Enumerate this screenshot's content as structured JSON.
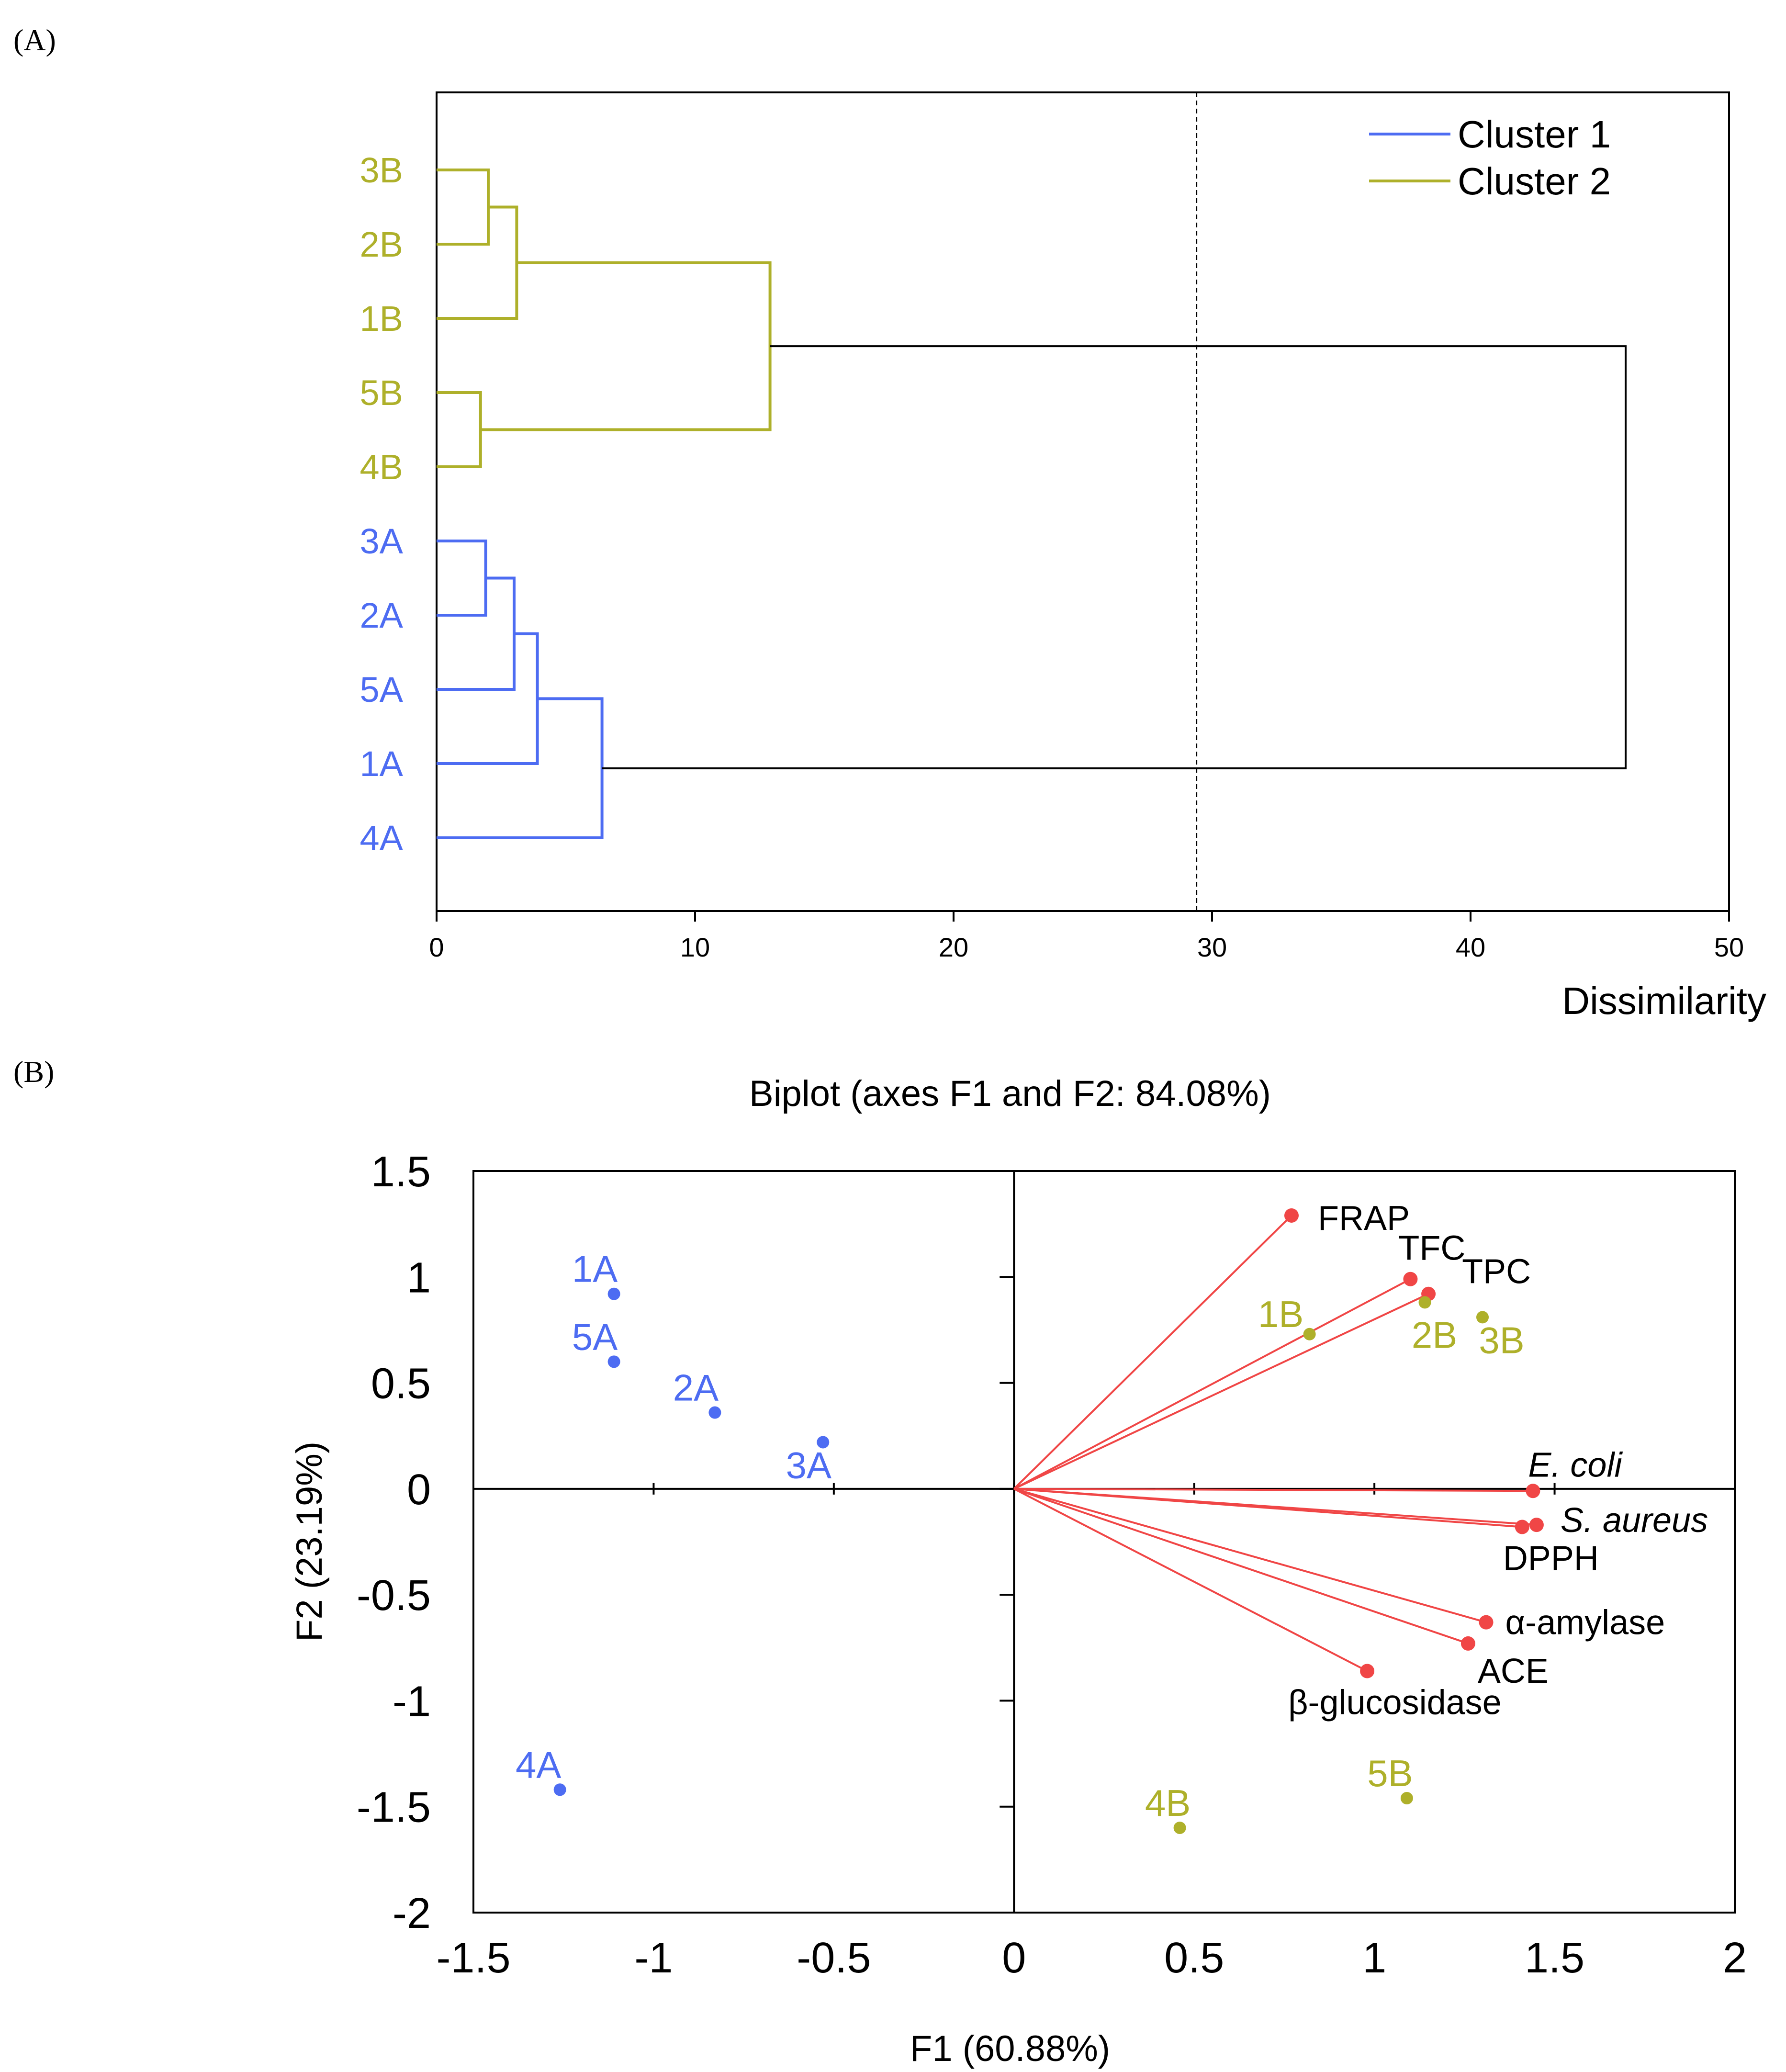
{
  "panel_labels": {
    "a": "(A)",
    "b": "(B)"
  },
  "colors": {
    "cluster1": "#4d6cf2",
    "cluster2": "#aeb02a",
    "vectors": "#f04646",
    "axis": "#000000"
  },
  "chart_data": [
    {
      "type": "dendrogram",
      "xlabel": "Dissimilarity",
      "xlim": [
        0,
        50
      ],
      "xticks": [
        "0",
        "10",
        "20",
        "30",
        "40",
        "50"
      ],
      "truncation_line": 29.4,
      "legend": {
        "position": "top-right",
        "entries": [
          {
            "name": "Cluster 1",
            "color": "#4d6cf2"
          },
          {
            "name": "Cluster 2",
            "color": "#aeb02a"
          }
        ]
      },
      "leaves": [
        {
          "label": "3B",
          "cluster": 2
        },
        {
          "label": "2B",
          "cluster": 2
        },
        {
          "label": "1B",
          "cluster": 2
        },
        {
          "label": "5B",
          "cluster": 2
        },
        {
          "label": "4B",
          "cluster": 2
        },
        {
          "label": "3A",
          "cluster": 1
        },
        {
          "label": "2A",
          "cluster": 1
        },
        {
          "label": "5A",
          "cluster": 1
        },
        {
          "label": "1A",
          "cluster": 1
        },
        {
          "label": "4A",
          "cluster": 1
        }
      ],
      "merges": [
        {
          "a": "3B",
          "b": "2B",
          "height": 2.0,
          "cluster": 2
        },
        {
          "a": "3B+2B",
          "b": "1B",
          "height": 3.1,
          "cluster": 2
        },
        {
          "a": "5B",
          "b": "4B",
          "height": 1.7,
          "cluster": 2
        },
        {
          "a": "3B+2B+1B",
          "b": "5B+4B",
          "height": 12.9,
          "cluster": 2
        },
        {
          "a": "3A",
          "b": "2A",
          "height": 1.9,
          "cluster": 1
        },
        {
          "a": "3A+2A",
          "b": "5A",
          "height": 3.0,
          "cluster": 1
        },
        {
          "a": "3A+2A+5A",
          "b": "1A",
          "height": 3.9,
          "cluster": 1
        },
        {
          "a": "3A+2A+5A+1A",
          "b": "4A",
          "height": 6.4,
          "cluster": 1
        },
        {
          "a": "cluster2",
          "b": "cluster1",
          "height": 46.0,
          "cluster": 0
        }
      ]
    },
    {
      "type": "scatter",
      "title": "Biplot (axes F1 and F2: 84.08%)",
      "xlabel": "F1 (60.88%)",
      "ylabel": "F2 (23.19%)",
      "xlim": [
        -1.5,
        2
      ],
      "ylim": [
        -2,
        1.5
      ],
      "xticks": [
        "-1.5",
        "-1",
        "-0.5",
        "0",
        "0.5",
        "1",
        "1.5",
        "2"
      ],
      "yticks": [
        "1.5",
        "1",
        "0.5",
        "0",
        "-0.5",
        "-1",
        "-1.5",
        "-2"
      ],
      "observations": [
        {
          "label": "1A",
          "x": -1.11,
          "y": 0.92,
          "cluster": 1
        },
        {
          "label": "5A",
          "x": -1.11,
          "y": 0.6,
          "cluster": 1
        },
        {
          "label": "2A",
          "x": -0.83,
          "y": 0.36,
          "cluster": 1
        },
        {
          "label": "3A",
          "x": -0.53,
          "y": 0.22,
          "cluster": 1
        },
        {
          "label": "4A",
          "x": -1.26,
          "y": -1.42,
          "cluster": 1
        },
        {
          "label": "1B",
          "x": 0.82,
          "y": 0.73,
          "cluster": 2
        },
        {
          "label": "2B",
          "x": 1.14,
          "y": 0.88,
          "cluster": 2
        },
        {
          "label": "3B",
          "x": 1.3,
          "y": 0.81,
          "cluster": 2
        },
        {
          "label": "4B",
          "x": 0.46,
          "y": -1.6,
          "cluster": 2
        },
        {
          "label": "5B",
          "x": 1.09,
          "y": -1.46,
          "cluster": 2
        }
      ],
      "variables": [
        {
          "label": "FRAP",
          "x": 0.77,
          "y": 1.29,
          "italic": false
        },
        {
          "label": "TFC",
          "x": 1.1,
          "y": 0.99,
          "italic": false
        },
        {
          "label": "TPC",
          "x": 1.15,
          "y": 0.92,
          "italic": false
        },
        {
          "label": "E. coli",
          "x": 1.44,
          "y": -0.01,
          "italic": true
        },
        {
          "label": "S. aureus",
          "x": 1.45,
          "y": -0.17,
          "italic": true
        },
        {
          "label": "DPPH",
          "x": 1.41,
          "y": -0.18,
          "italic": false
        },
        {
          "label": "α-amylase",
          "x": 1.31,
          "y": -0.63,
          "italic": false
        },
        {
          "label": "ACE",
          "x": 1.26,
          "y": -0.73,
          "italic": false
        },
        {
          "label": "β-glucosidase",
          "x": 0.98,
          "y": -0.86,
          "italic": false
        }
      ]
    }
  ]
}
